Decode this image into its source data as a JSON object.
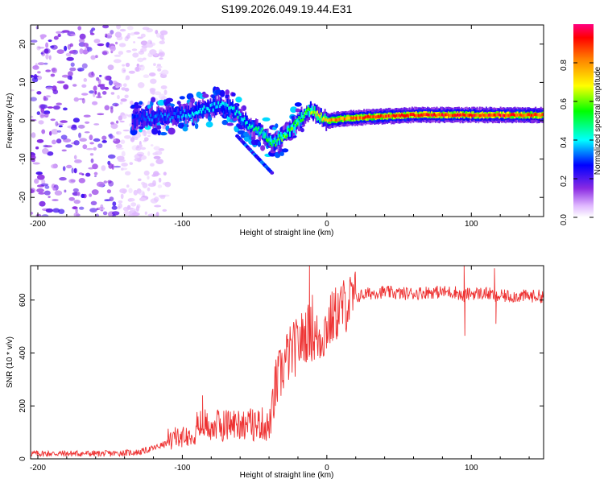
{
  "title": "S199.2026.049.19.44.E31",
  "chart_data": [
    {
      "type": "heatmap",
      "name": "spectrogram",
      "xlabel": "Height of straight line (km)",
      "ylabel": "Frequency (Hz)",
      "xlim": [
        -205,
        150
      ],
      "ylim": [
        -25,
        25
      ],
      "xticks": [
        -200,
        -100,
        0,
        100
      ],
      "yticks": [
        -20,
        -10,
        0,
        10,
        20
      ],
      "colorbar": {
        "label": "Normalized spectral amplitude",
        "range": [
          0,
          1
        ],
        "ticks": [
          "0.0",
          "0.2",
          "0.4",
          "0.6",
          "0.8"
        ],
        "colors": [
          "#ffffff",
          "#cc88ff",
          "#8000ff",
          "#0000ff",
          "#00ffff",
          "#00ff00",
          "#ffff00",
          "#ff8000",
          "#ff0000",
          "#ff0080"
        ]
      },
      "ridge": {
        "x": [
          -135,
          -125,
          -115,
          -105,
          -95,
          -85,
          -75,
          -65,
          -55,
          -45,
          -38,
          -30,
          -20,
          -12,
          -8,
          -4,
          0,
          10,
          30,
          60,
          90,
          120,
          150
        ],
        "freq": [
          0,
          1,
          1,
          1.5,
          2,
          3,
          4,
          3,
          -1,
          -3,
          -6,
          -4,
          0,
          3,
          2,
          1,
          0,
          0.5,
          1,
          1.5,
          1.5,
          1.5,
          1.5
        ],
        "amplitude": [
          0.3,
          0.35,
          0.35,
          0.35,
          0.4,
          0.4,
          0.4,
          0.45,
          0.45,
          0.5,
          0.55,
          0.6,
          0.6,
          0.65,
          0.7,
          0.75,
          0.8,
          0.85,
          0.9,
          0.95,
          0.95,
          0.95,
          0.9
        ]
      },
      "noise_region_x": [
        -205,
        -135
      ]
    },
    {
      "type": "line",
      "name": "snr",
      "xlabel": "Height of straight line (km)",
      "ylabel": "SNR (10 * v/v)",
      "xlim": [
        -205,
        150
      ],
      "ylim": [
        0,
        730
      ],
      "xticks": [
        -200,
        -100,
        0,
        100
      ],
      "yticks": [
        0,
        200,
        400,
        600
      ],
      "color": "#ee3333",
      "series": [
        {
          "name": "SNR",
          "x": [
            -205,
            -190,
            -170,
            -150,
            -130,
            -120,
            -110,
            -100,
            -95,
            -90,
            -85,
            -80,
            -75,
            -70,
            -60,
            -50,
            -45,
            -40,
            -38,
            -35,
            -32,
            -30,
            -28,
            -25,
            -20,
            -15,
            -12,
            -10,
            -8,
            -5,
            -2,
            0,
            5,
            10,
            15,
            20,
            25,
            30,
            35,
            40,
            50,
            60,
            70,
            80,
            90,
            94,
            96,
            100,
            110,
            115,
            117,
            120,
            130,
            140,
            150
          ],
          "y": [
            20,
            20,
            20,
            20,
            25,
            40,
            60,
            80,
            90,
            100,
            120,
            110,
            115,
            120,
            130,
            120,
            130,
            100,
            200,
            280,
            320,
            350,
            380,
            400,
            430,
            470,
            480,
            470,
            450,
            460,
            480,
            500,
            540,
            570,
            590,
            610,
            620,
            625,
            630,
            630,
            625,
            625,
            630,
            630,
            630,
            610,
            620,
            625,
            625,
            620,
            610,
            615,
            615,
            615,
            615
          ]
        }
      ],
      "spikes": [
        {
          "x": -86,
          "y": 240
        },
        {
          "x": -12,
          "y": 730
        },
        {
          "x": -10,
          "y": 620
        },
        {
          "x": 95,
          "y": 730
        },
        {
          "x": 95.5,
          "y": 465
        },
        {
          "x": 116,
          "y": 720
        },
        {
          "x": 117,
          "y": 510
        }
      ]
    }
  ]
}
